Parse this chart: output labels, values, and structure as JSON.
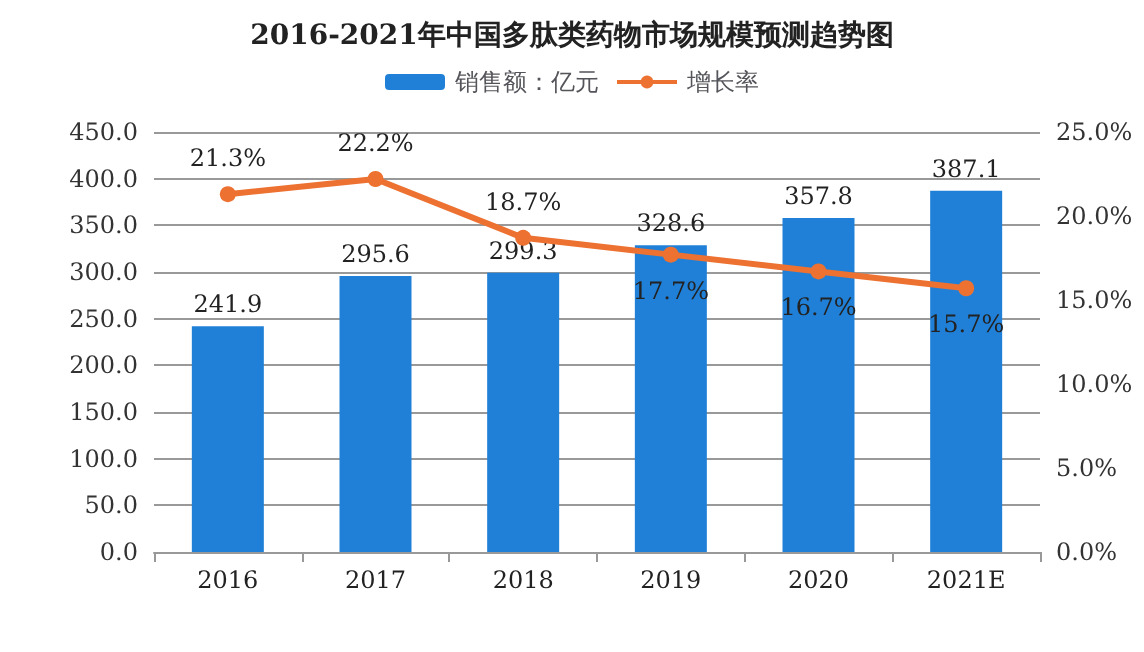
{
  "chart_data": {
    "type": "bar",
    "title": "2016-2021年中国多肽类药物市场规模预测趋势图",
    "categories": [
      "2016",
      "2017",
      "2018",
      "2019",
      "2020",
      "2021E"
    ],
    "series": [
      {
        "name": "销售额：亿元",
        "color": "#2080d8",
        "values": [
          241.9,
          295.6,
          299.3,
          328.6,
          357.8,
          387.1
        ],
        "value_labels": [
          "241.9",
          "295.6",
          "299.3",
          "328.6",
          "357.8",
          "387.1"
        ]
      },
      {
        "name": "增长率",
        "type": "line",
        "axis": "y2",
        "color": "#ed7130",
        "values": [
          21.3,
          22.2,
          18.7,
          17.7,
          16.7,
          15.7
        ],
        "value_labels": [
          "21.3%",
          "22.2%",
          "18.7%",
          "17.7%",
          "16.7%",
          "15.7%"
        ]
      }
    ],
    "ylim": [
      0,
      450
    ],
    "yticks": [
      {
        "value": 0,
        "label": "0.0"
      },
      {
        "value": 50,
        "label": "50.0"
      },
      {
        "value": 100,
        "label": "100.0"
      },
      {
        "value": 150,
        "label": "150.0"
      },
      {
        "value": 200,
        "label": "200.0"
      },
      {
        "value": 250,
        "label": "250.0"
      },
      {
        "value": 300,
        "label": "300.0"
      },
      {
        "value": 350,
        "label": "350.0"
      },
      {
        "value": 400,
        "label": "400.0"
      },
      {
        "value": 450,
        "label": "450.0"
      }
    ],
    "y2lim": [
      0,
      25
    ],
    "y2ticks": [
      {
        "value": 0,
        "label": "0.0%"
      },
      {
        "value": 5,
        "label": "5.0%"
      },
      {
        "value": 10,
        "label": "10.0%"
      },
      {
        "value": 15,
        "label": "15.0%"
      },
      {
        "value": 20,
        "label": "20.0%"
      },
      {
        "value": 25,
        "label": "25.0%"
      }
    ],
    "grid": "y",
    "legend": "top",
    "marker": "circle"
  }
}
